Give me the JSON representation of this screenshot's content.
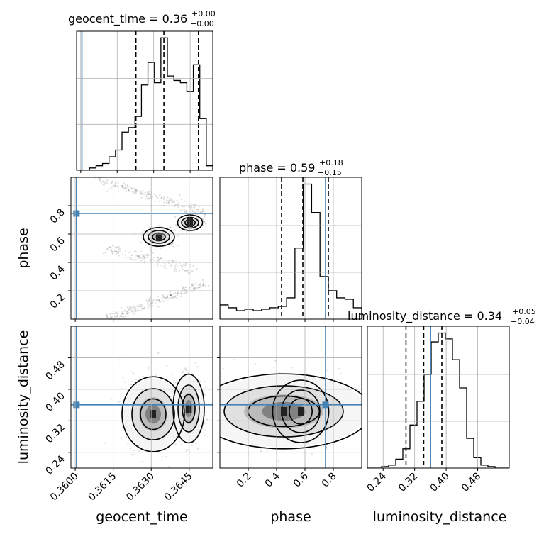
{
  "chart_data": {
    "type": "corner",
    "parameters": [
      "geocent_time",
      "phase",
      "luminosity_distance"
    ],
    "truth": {
      "geocent_time": 0.36005,
      "phase": 0.745,
      "luminosity_distance": 0.3605
    },
    "titles": {
      "geocent_time": {
        "name": "geocent_time",
        "value": "0.36",
        "plus": "+0.00",
        "minus": "−0.00"
      },
      "phase": {
        "name": "phase",
        "value": "0.59",
        "plus": "+0.18",
        "minus": "−0.15"
      },
      "luminosity_distance": {
        "name": "luminosity_distance",
        "value": "0.34",
        "plus": "+0.05",
        "minus": "−0.04"
      }
    },
    "axes": {
      "geocent_time": {
        "lim": [
          0.35983,
          0.36543
        ],
        "ticks": [
          0.36,
          0.3615,
          0.363,
          0.3645
        ],
        "ticklabels": [
          "0.3600",
          "0.3615",
          "0.3630",
          "0.3645"
        ]
      },
      "phase": {
        "lim": [
          0.0,
          1.0
        ],
        "ticks": [
          0.2,
          0.4,
          0.6,
          0.8
        ],
        "ticklabels": [
          "0.2",
          "0.4",
          "0.6",
          "0.8"
        ]
      },
      "luminosity_distance": {
        "lim": [
          0.2,
          0.56
        ],
        "ticks": [
          0.24,
          0.32,
          0.4,
          0.48
        ],
        "ticklabels": [
          "0.24",
          "0.32",
          "0.40",
          "0.48"
        ]
      }
    },
    "histograms": {
      "geocent_time": {
        "edges_lim": [
          0.35983,
          0.36543
        ],
        "counts": [
          0,
          0,
          1,
          2,
          3,
          6,
          9,
          17,
          19,
          24,
          38,
          48,
          39,
          59,
          42,
          40,
          39,
          35,
          47,
          23,
          2
        ],
        "quantiles": [
          0.36227,
          0.36342,
          0.36484
        ]
      },
      "phase": {
        "edges_lim": [
          0.0,
          1.0
        ],
        "counts": [
          10,
          8,
          6,
          7,
          6,
          7,
          8,
          9,
          15,
          50,
          95,
          75,
          30,
          20,
          15,
          14,
          8
        ],
        "quantiles": [
          0.435,
          0.585,
          0.765
        ]
      },
      "luminosity_distance": {
        "edges_lim": [
          0.2,
          0.56
        ],
        "counts": [
          0,
          0,
          1,
          2,
          6,
          13,
          29,
          45,
          63,
          85,
          91,
          87,
          73,
          54,
          20,
          7,
          2,
          1,
          0,
          0
        ],
        "quantiles": [
          0.298,
          0.343,
          0.389
        ]
      }
    },
    "grid": true
  }
}
